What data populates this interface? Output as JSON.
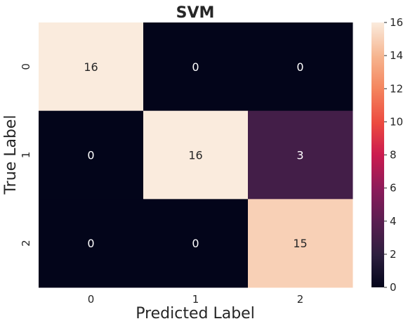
{
  "chart_data": {
    "type": "heatmap",
    "title": "SVM",
    "xlabel": "Predicted Label",
    "ylabel": "True Label",
    "x_categories": [
      "0",
      "1",
      "2"
    ],
    "y_categories": [
      "0",
      "1",
      "2"
    ],
    "values": [
      [
        16,
        0,
        0
      ],
      [
        0,
        16,
        3
      ],
      [
        0,
        0,
        15
      ]
    ],
    "colorbar": {
      "range": [
        0,
        16
      ],
      "ticks": [
        "0",
        "2",
        "4",
        "6",
        "8",
        "10",
        "12",
        "14",
        "16"
      ]
    },
    "colormap": "rocket",
    "grid": false
  }
}
